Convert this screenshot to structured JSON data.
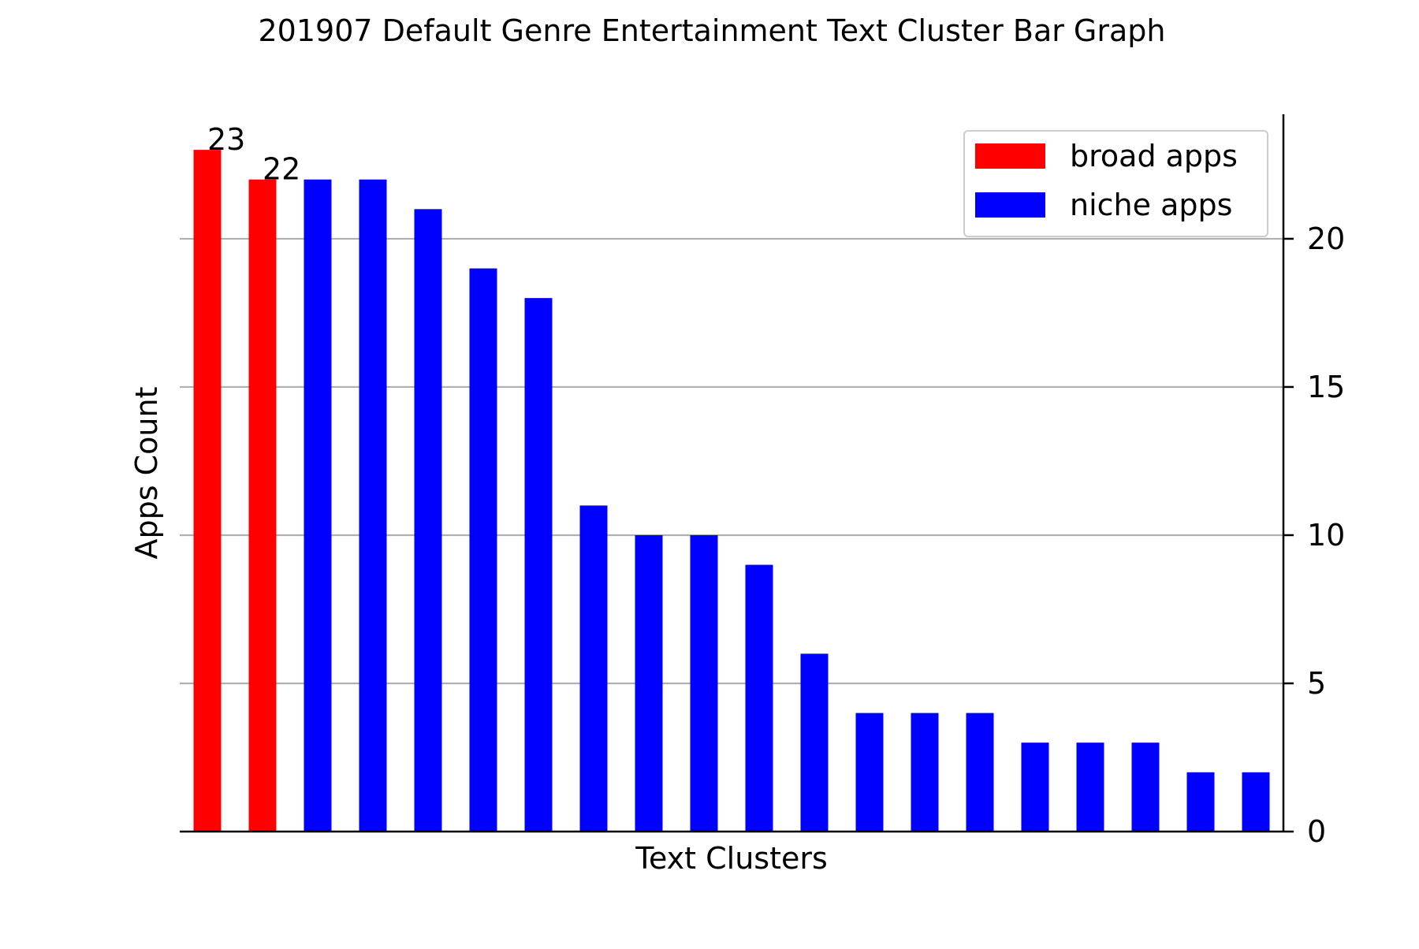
{
  "chart_data": {
    "type": "bar",
    "title": "201907 Default Genre Entertainment Text Cluster Bar Graph",
    "xlabel": "Text Clusters",
    "ylabel": "Apps Count",
    "ylim": [
      0,
      24.2
    ],
    "yticks": [
      0,
      5,
      10,
      15,
      20
    ],
    "ytick_labels": [
      "0",
      "5",
      "10",
      "15",
      "20"
    ],
    "y_axis_side": "right",
    "grid": "horizontal",
    "legend_position": "top-right",
    "series": [
      {
        "name": "broad apps",
        "color": "#ff0000",
        "values": [
          23,
          22,
          null,
          null,
          null,
          null,
          null,
          null,
          null,
          null,
          null,
          null,
          null,
          null,
          null,
          null,
          null,
          null,
          null,
          null
        ]
      },
      {
        "name": "niche apps",
        "color": "#0000ff",
        "values": [
          null,
          null,
          22,
          22,
          21,
          19,
          18,
          11,
          10,
          10,
          9,
          6,
          4,
          4,
          4,
          3,
          3,
          3,
          2,
          2
        ]
      }
    ],
    "bar_count": 20,
    "data_labels": [
      {
        "bar_index": 0,
        "text": "23"
      },
      {
        "bar_index": 1,
        "text": "22"
      }
    ],
    "legend": [
      {
        "label": "broad apps",
        "color": "#ff0000"
      },
      {
        "label": "niche apps",
        "color": "#0000ff"
      }
    ]
  }
}
